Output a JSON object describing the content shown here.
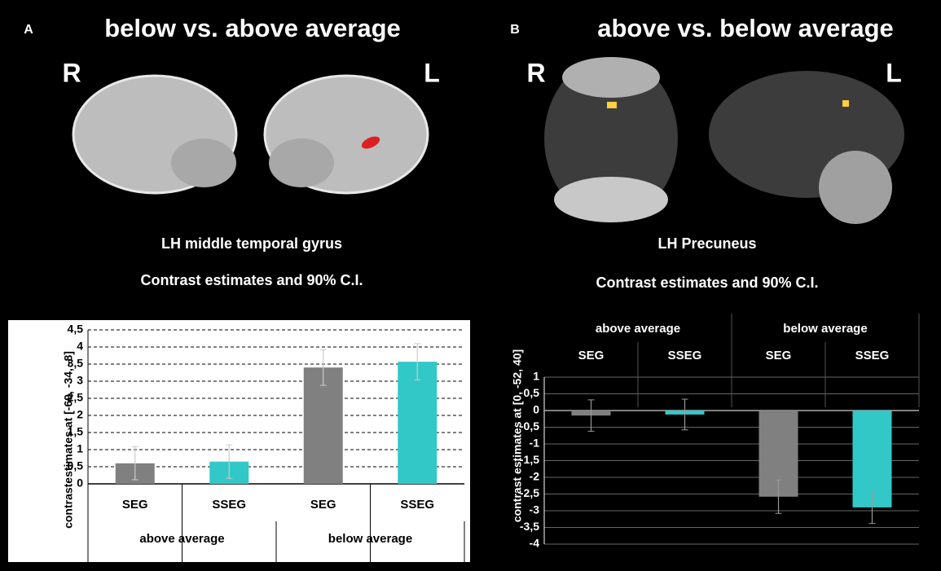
{
  "chart_data": [
    {
      "type": "bar",
      "panel_label": "A",
      "heading": "below vs. above average",
      "hemisphere_labels": [
        "R",
        "L"
      ],
      "title": "LH middle temporal gyrus",
      "subtitle": "Contrast estimates and 90% C.I.",
      "ylabel": "contrastestimates at [-69, -34, -8]",
      "groups": [
        "above average",
        "below average"
      ],
      "categories": [
        "SEG",
        "SSEG",
        "SEG",
        "SSEG"
      ],
      "values": [
        0.6,
        0.65,
        3.4,
        3.57
      ],
      "errors": [
        0.48,
        0.49,
        0.52,
        0.53
      ],
      "colors": [
        "#808080",
        "#33c8c8",
        "#808080",
        "#33c8c8"
      ],
      "ylim": [
        0,
        4.5
      ],
      "yticks": [
        0,
        {
          "value": 0.5,
          "label": "0,5"
        },
        1,
        {
          "value": 1.5,
          "label": "1,5"
        },
        2,
        {
          "value": 2.5,
          "label": "2,5"
        },
        3,
        {
          "value": 3.5,
          "label": "3,5"
        },
        4,
        {
          "value": 4.5,
          "label": "4,5"
        }
      ],
      "grid": true,
      "grid_style": "dashed",
      "background": "#ffffff"
    },
    {
      "type": "bar",
      "panel_label": "B",
      "heading": "above vs. below average",
      "hemisphere_labels": [
        "R",
        "L"
      ],
      "title": "LH Precuneus",
      "subtitle": "Contrast estimates and 90% C.I.",
      "ylabel": "contrast estimates at [0, -52, 40]",
      "groups": [
        "above average",
        "below average"
      ],
      "categories": [
        "SEG",
        "SSEG",
        "SEG",
        "SSEG"
      ],
      "values": [
        -0.15,
        -0.12,
        -2.58,
        -2.9
      ],
      "errors": [
        0.47,
        0.46,
        0.5,
        0.48
      ],
      "colors": [
        "#808080",
        "#33c8c8",
        "#808080",
        "#33c8c8"
      ],
      "ylim": [
        -4,
        1
      ],
      "yticks": [
        1,
        {
          "value": 0.5,
          "label": "0,5"
        },
        0,
        {
          "value": -0.5,
          "label": "-0,5"
        },
        -1,
        {
          "value": -1.5,
          "label": "-1,5"
        },
        -2,
        {
          "value": -2.5,
          "label": "-2,5"
        },
        -3,
        {
          "value": -3.5,
          "label": "-3,5"
        },
        -4
      ],
      "grid": true,
      "grid_style": "solid",
      "background": "#000000"
    }
  ]
}
